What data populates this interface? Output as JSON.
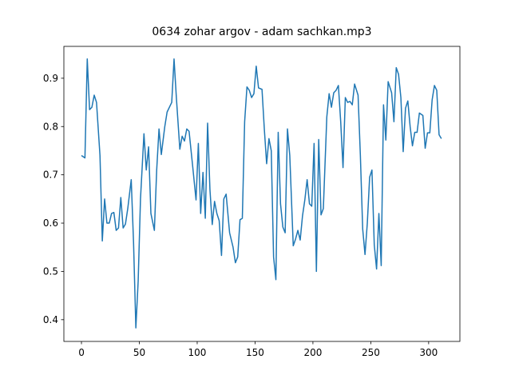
{
  "chart_data": {
    "type": "line",
    "title": "0634 zohar argov - adam sachkan.mp3",
    "x": [
      0,
      3,
      5,
      7,
      9,
      11,
      13,
      16,
      18,
      20,
      22,
      24,
      26,
      28,
      30,
      32,
      34,
      36,
      38,
      40,
      43,
      45,
      47,
      49,
      51,
      54,
      56,
      58,
      60,
      63,
      65,
      67,
      69,
      72,
      74,
      76,
      78,
      80,
      82,
      85,
      87,
      89,
      91,
      93,
      96,
      99,
      101,
      103,
      105,
      107,
      109,
      111,
      113,
      115,
      117,
      119,
      121,
      123,
      125,
      128,
      131,
      133,
      135,
      137,
      139,
      141,
      143,
      145,
      147,
      149,
      151,
      153,
      156,
      158,
      160,
      162,
      164,
      166,
      168,
      170,
      172,
      174,
      176,
      178,
      180,
      183,
      185,
      187,
      189,
      191,
      193,
      195,
      197,
      199,
      201,
      203,
      205,
      207,
      209,
      212,
      214,
      216,
      218,
      220,
      222,
      224,
      226,
      228,
      230,
      232,
      234,
      236,
      239,
      241,
      243,
      245,
      247,
      249,
      251,
      253,
      255,
      257,
      259,
      261,
      263,
      265,
      268,
      270,
      272,
      274,
      276,
      278,
      280,
      282,
      284,
      286,
      288,
      290,
      292,
      295,
      297,
      299,
      301,
      303,
      305,
      307,
      309,
      311
    ],
    "series": [
      {
        "color": "#1f77b4",
        "values": [
          0.74,
          0.735,
          0.94,
          0.835,
          0.84,
          0.865,
          0.85,
          0.74,
          0.563,
          0.65,
          0.6,
          0.6,
          0.62,
          0.622,
          0.585,
          0.59,
          0.653,
          0.59,
          0.598,
          0.63,
          0.69,
          0.56,
          0.383,
          0.48,
          0.65,
          0.785,
          0.71,
          0.758,
          0.62,
          0.585,
          0.71,
          0.795,
          0.742,
          0.8,
          0.83,
          0.84,
          0.85,
          0.94,
          0.86,
          0.753,
          0.78,
          0.77,
          0.795,
          0.79,
          0.72,
          0.648,
          0.765,
          0.62,
          0.705,
          0.61,
          0.807,
          0.67,
          0.597,
          0.645,
          0.62,
          0.605,
          0.533,
          0.65,
          0.66,
          0.58,
          0.55,
          0.518,
          0.53,
          0.607,
          0.61,
          0.81,
          0.882,
          0.875,
          0.86,
          0.868,
          0.925,
          0.88,
          0.877,
          0.795,
          0.723,
          0.775,
          0.75,
          0.53,
          0.483,
          0.788,
          0.64,
          0.592,
          0.58,
          0.795,
          0.74,
          0.553,
          0.567,
          0.585,
          0.565,
          0.615,
          0.648,
          0.69,
          0.64,
          0.635,
          0.765,
          0.5,
          0.773,
          0.617,
          0.63,
          0.82,
          0.868,
          0.84,
          0.87,
          0.875,
          0.885,
          0.81,
          0.715,
          0.86,
          0.85,
          0.852,
          0.845,
          0.888,
          0.865,
          0.74,
          0.588,
          0.535,
          0.6,
          0.695,
          0.71,
          0.555,
          0.505,
          0.62,
          0.512,
          0.845,
          0.772,
          0.893,
          0.87,
          0.81,
          0.922,
          0.908,
          0.86,
          0.748,
          0.838,
          0.853,
          0.8,
          0.76,
          0.788,
          0.788,
          0.828,
          0.823,
          0.755,
          0.787,
          0.787,
          0.855,
          0.885,
          0.875,
          0.783,
          0.775
        ]
      }
    ],
    "xlim": [
      -15.2,
      327
    ],
    "ylim": [
      0.355,
      0.966
    ],
    "xticks": [
      0,
      50,
      100,
      150,
      200,
      250,
      300
    ],
    "yticks": [
      0.4,
      0.5,
      0.6,
      0.7,
      0.8,
      0.9
    ]
  }
}
